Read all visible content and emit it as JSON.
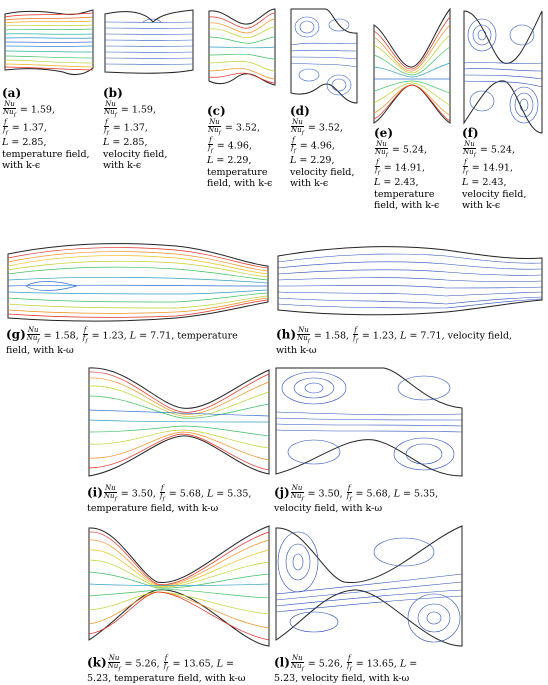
{
  "figure": {
    "panels": [
      {
        "id": "a",
        "letter": "(a)",
        "nu": "1.59,",
        "ff": "1.37,",
        "L": "2.85,",
        "field": "temperature field,",
        "model": "with k-ϵ"
      },
      {
        "id": "b",
        "letter": "(b)",
        "nu": "1.59,",
        "ff": "1.37,",
        "L": "2.85,",
        "field": "velocity field,",
        "model": "with k-ϵ"
      },
      {
        "id": "c",
        "letter": "(c)",
        "nu": "3.52,",
        "ff": "4.96,",
        "L": "2.29,",
        "field": "temperature",
        "model": "field, with k-ϵ"
      },
      {
        "id": "d",
        "letter": "(d)",
        "nu": "3.52,",
        "ff": "4.96,",
        "L": "2.29,",
        "field": "velocity field,",
        "model": "with k-ϵ"
      },
      {
        "id": "e",
        "letter": "(e)",
        "nu": "5.24,",
        "ff": "14.91,",
        "L": "2.43,",
        "field": "temperature",
        "model": "field, with k-ϵ"
      },
      {
        "id": "f",
        "letter": "(f)",
        "nu": "5.24,",
        "ff": "14.91,",
        "L": "2.43,",
        "field": "velocity field,",
        "model": "with k-ϵ"
      },
      {
        "id": "g",
        "letter": "(g)",
        "nu": "1.58,",
        "ff": "1.23,",
        "L": "7.71,",
        "field": "temperature",
        "model": "field, with k-ω"
      },
      {
        "id": "h",
        "letter": "(h)",
        "nu": "1.58,",
        "ff": "1.23,",
        "L": "7.71,",
        "field": "velocity field,",
        "model": "with k-ω"
      },
      {
        "id": "i",
        "letter": "(i)",
        "nu": "3.50,",
        "ff": "5.68,",
        "L": "5.35,",
        "field": "",
        "model": "temperature field, with k-ω"
      },
      {
        "id": "j",
        "letter": "(j)",
        "nu": "3.50,",
        "ff": "5.68,",
        "L": "5.35,",
        "field": "",
        "model": "velocity field, with k-ω"
      },
      {
        "id": "k",
        "letter": "(k)",
        "nu": "5.26,",
        "ff": "13.65,",
        "L": "",
        "field": "",
        "model": "5.23, temperature field, with k-ω"
      },
      {
        "id": "l",
        "letter": "(l)",
        "nu": "5.26,",
        "ff": "13.65,",
        "L": "",
        "field": "",
        "model": "5.23, velocity field, with k-ω"
      }
    ],
    "symbols": {
      "nu_num": "Nu",
      "nu_den": "Nu",
      "nu_sub": "f",
      "f_num": "f",
      "f_den": "f",
      "f_sub": "f",
      "L": "L",
      "eq": "="
    }
  }
}
